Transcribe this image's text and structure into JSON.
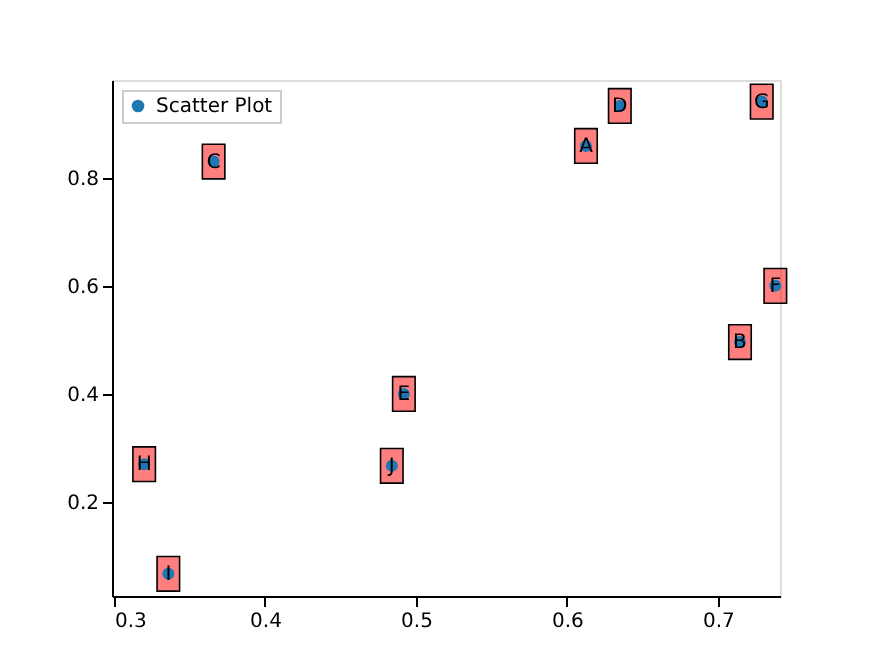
{
  "chart_data": {
    "type": "scatter",
    "xlim": [
      0.2987,
      0.7411
    ],
    "ylim": [
      0.026,
      0.981
    ],
    "xticks": [
      0.3,
      0.4,
      0.5,
      0.6,
      0.7
    ],
    "yticks": [
      0.2,
      0.4,
      0.6,
      0.8
    ],
    "grid": false,
    "legend": "top left",
    "marker": "circle",
    "series": [
      {
        "name": "Scatter Plot",
        "color": "#1f77b4",
        "x": [
          0.6126,
          0.7146,
          0.366,
          0.635,
          0.492,
          0.738,
          0.729,
          0.32,
          0.336,
          0.484
        ],
        "values": [
          0.859,
          0.496,
          0.83,
          0.933,
          0.4,
          0.6,
          0.941,
          0.27,
          0.067,
          0.267
        ]
      }
    ],
    "annotations": [
      {
        "text": "A",
        "x": 0.6126,
        "y": 0.859
      },
      {
        "text": "B",
        "x": 0.7146,
        "y": 0.496
      },
      {
        "text": "C",
        "x": 0.366,
        "y": 0.83
      },
      {
        "text": "D",
        "x": 0.635,
        "y": 0.933
      },
      {
        "text": "E",
        "x": 0.492,
        "y": 0.4
      },
      {
        "text": "F",
        "x": 0.738,
        "y": 0.6
      },
      {
        "text": "G",
        "x": 0.729,
        "y": 0.941
      },
      {
        "text": "H",
        "x": 0.32,
        "y": 0.27
      },
      {
        "text": "I",
        "x": 0.336,
        "y": 0.067
      },
      {
        "text": "J",
        "x": 0.484,
        "y": 0.267
      }
    ]
  }
}
